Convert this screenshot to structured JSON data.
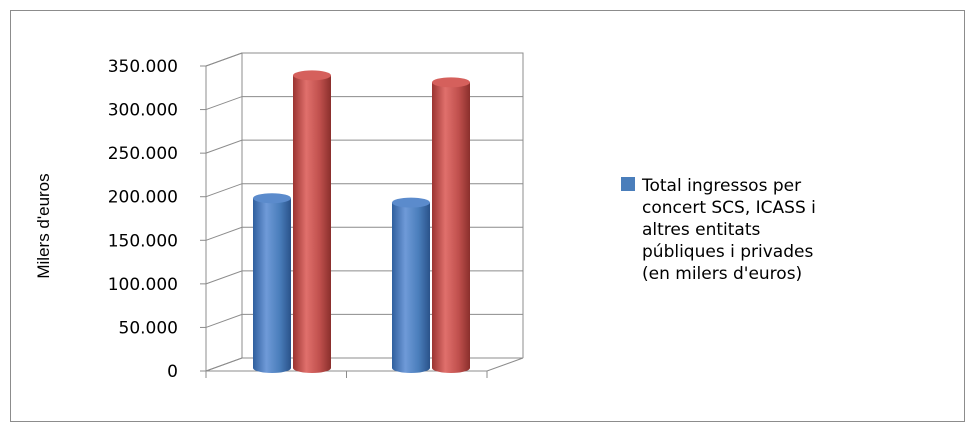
{
  "chart_data": {
    "type": "bar",
    "style": "3d-cylinder",
    "categories": [
      "",
      ""
    ],
    "series": [
      {
        "name": "Total ingressos per concert SCS, ICASS i altres entitats públiques i privades (en milers d'euros)",
        "values": [
          202000,
          197000
        ],
        "color": "#4a7ebb"
      },
      {
        "name": "",
        "values": [
          343000,
          335000
        ],
        "color": "#c0504d"
      }
    ],
    "ylabel": "Milers d'euros",
    "ylim": [
      0,
      350000
    ],
    "yticks": [
      "0",
      "50.000",
      "100.000",
      "150.000",
      "200.000",
      "250.000",
      "300.000",
      "350.000"
    ],
    "grid": true,
    "legend_position": "right",
    "legend_lines": [
      "Total ingressos per",
      "concert SCS, ICASS i",
      "altres entitats",
      "públiques i privades",
      "(en milers d'euros)"
    ]
  }
}
